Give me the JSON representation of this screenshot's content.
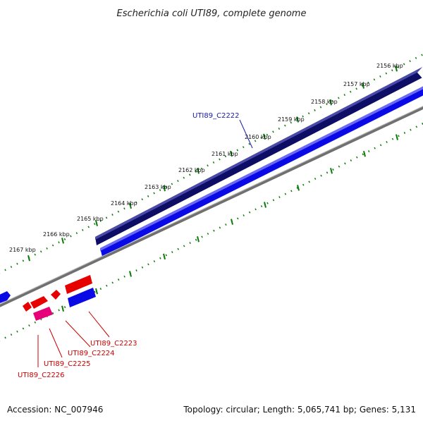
{
  "title": "Escherichia coli UTI89, complete genome",
  "footer": {
    "accession": "Accession: NC_007946",
    "stats": "Topology: circular; Length: 5,065,741 bp; Genes: 5,131"
  },
  "ticks": [
    "2156 kbp",
    "2157 kbp",
    "2158 kbp",
    "2159 kbp",
    "2160 kbp",
    "2161 kbp",
    "2162 kbp",
    "2163 kbp",
    "2164 kbp",
    "2165 kbp",
    "2166 kbp",
    "2167 kbp"
  ],
  "genes": [
    {
      "name": "UTI89_C2222",
      "color": "#1a1aa8"
    },
    {
      "name": "UTI89_C2223",
      "color": "#cc0000"
    },
    {
      "name": "UTI89_C2224",
      "color": "#cc0000"
    },
    {
      "name": "UTI89_C2225",
      "color": "#cc0000"
    },
    {
      "name": "UTI89_C2226",
      "color": "#cc0000"
    }
  ],
  "colors": {
    "navy_track": "#0d0d66",
    "blue_feature": "#0a0ae6",
    "backbone": "#707070",
    "red_feature": "#e60000",
    "pink_feature": "#e6007a",
    "tick_green": "#0a7a0a"
  }
}
